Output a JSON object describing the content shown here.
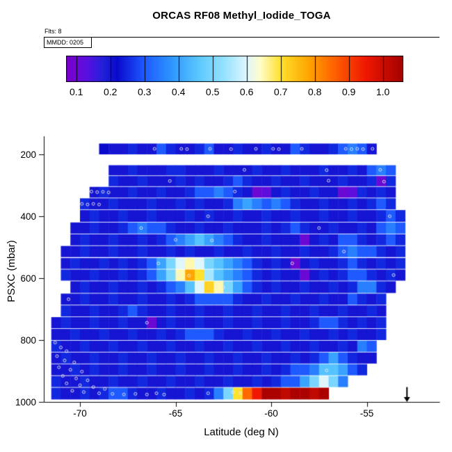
{
  "header": {
    "title": "ORCAS RF08 Methyl_Iodide_TOGA",
    "flights_label": "Flts: 8",
    "legend_flight_label": "MMDD: 0205"
  },
  "chart_data": {
    "type": "heatmap",
    "title": "ORCAS RF08 Methyl_Iodide_TOGA",
    "xlabel": "Latitude (deg N)",
    "ylabel": "PSXC (mbar)",
    "xlim": [
      -71.9,
      -51.2
    ],
    "ylim": [
      1000,
      140
    ],
    "x_ticks": [
      -70,
      -65,
      -60,
      -55
    ],
    "y_ticks": [
      200,
      400,
      600,
      800,
      1000
    ],
    "grid": false,
    "legend_position": "top",
    "colorbar": {
      "ticks": [
        0.1,
        0.2,
        0.3,
        0.4,
        0.5,
        0.6,
        0.7,
        0.8,
        0.9,
        1.0
      ],
      "domain": [
        0.07,
        1.06
      ],
      "anchors": [
        [
          0.07,
          "#7A00C8"
        ],
        [
          0.13,
          "#5A10E0"
        ],
        [
          0.18,
          "#2020D8"
        ],
        [
          0.22,
          "#0A0ACD"
        ],
        [
          0.3,
          "#1E5AFF"
        ],
        [
          0.38,
          "#2E96FF"
        ],
        [
          0.46,
          "#5CC8FF"
        ],
        [
          0.54,
          "#9AE4FF"
        ],
        [
          0.6,
          "#DFF6FF"
        ],
        [
          0.64,
          "#FFFDCB"
        ],
        [
          0.7,
          "#FFE12E"
        ],
        [
          0.78,
          "#FFA700"
        ],
        [
          0.86,
          "#FF6000"
        ],
        [
          0.95,
          "#F01800"
        ],
        [
          1.06,
          "#A40000"
        ]
      ]
    },
    "cell_width_deg": 0.5,
    "rows": [
      {
        "p_top": 165,
        "p_bot": 200,
        "lat_start": -69.0,
        "values": [
          0.22,
          0.2,
          0.2,
          0.25,
          0.2,
          0.2,
          0.3,
          0.25,
          0.2,
          0.2,
          0.25,
          0.3,
          0.2,
          0.2,
          0.25,
          0.2,
          0.2,
          0.25,
          0.2,
          0.2,
          0.3,
          0.25,
          0.2,
          0.2,
          0.25,
          0.3,
          0.35,
          0.3,
          0.2
        ]
      },
      {
        "p_top": 235,
        "p_bot": 268,
        "lat_start": -68.5,
        "values": [
          0.2,
          0.2,
          0.25,
          0.2,
          0.2,
          0.2,
          0.25,
          0.25,
          0.2,
          0.2,
          0.2,
          0.25,
          0.2,
          0.2,
          0.2,
          0.25,
          0.2,
          0.2,
          0.25,
          0.2,
          0.2,
          0.2,
          0.25,
          0.2,
          0.2,
          0.25,
          0.2,
          0.3,
          0.35,
          0.3
        ]
      },
      {
        "p_top": 270,
        "p_bot": 303,
        "lat_start": -68.5,
        "values": [
          0.25,
          0.2,
          0.2,
          0.25,
          0.2,
          0.2,
          0.2,
          0.25,
          0.2,
          0.25,
          0.2,
          0.2,
          0.25,
          0.3,
          0.25,
          0.2,
          0.2,
          0.25,
          0.2,
          0.2,
          0.25,
          0.2,
          0.2,
          0.2,
          0.25,
          0.2,
          0.2,
          0.25,
          0.1,
          0.25
        ]
      },
      {
        "p_top": 305,
        "p_bot": 340,
        "lat_start": -69.5,
        "values": [
          0.2,
          0.25,
          0.2,
          0.2,
          0.25,
          0.2,
          0.2,
          0.25,
          0.2,
          0.2,
          0.25,
          0.3,
          0.3,
          0.35,
          0.3,
          0.25,
          0.2,
          0.1,
          0.12,
          0.2,
          0.25,
          0.2,
          0.2,
          0.25,
          0.2,
          0.2,
          0.1,
          0.12,
          0.25,
          0.2,
          0.25,
          0.2
        ]
      },
      {
        "p_top": 342,
        "p_bot": 378,
        "lat_start": -70.0,
        "values": [
          0.25,
          0.2,
          0.2,
          0.25,
          0.2,
          0.2,
          0.2,
          0.25,
          0.2,
          0.2,
          0.25,
          0.2,
          0.25,
          0.2,
          0.2,
          0.25,
          0.35,
          0.4,
          0.35,
          0.3,
          0.35,
          0.3,
          0.25,
          0.2,
          0.2,
          0.25,
          0.2,
          0.2,
          0.25,
          0.2,
          0.25,
          0.3,
          0.25
        ]
      },
      {
        "p_top": 380,
        "p_bot": 418,
        "lat_start": -70.0,
        "values": [
          0.2,
          0.25,
          0.2,
          0.2,
          0.25,
          0.2,
          0.2,
          0.25,
          0.2,
          0.2,
          0.2,
          0.25,
          0.2,
          0.25,
          0.2,
          0.2,
          0.25,
          0.2,
          0.2,
          0.25,
          0.2,
          0.2,
          0.25,
          0.2,
          0.2,
          0.25,
          0.2,
          0.2,
          0.25,
          0.2,
          0.2,
          0.25,
          0.3,
          0.25
        ]
      },
      {
        "p_top": 420,
        "p_bot": 456,
        "lat_start": -70.5,
        "values": [
          0.2,
          0.2,
          0.25,
          0.2,
          0.2,
          0.25,
          0.3,
          0.35,
          0.3,
          0.3,
          0.25,
          0.2,
          0.2,
          0.25,
          0.2,
          0.2,
          0.25,
          0.2,
          0.2,
          0.2,
          0.25,
          0.2,
          0.25,
          0.3,
          0.25,
          0.2,
          0.2,
          0.25,
          0.2,
          0.2,
          0.25,
          0.2,
          0.3,
          0.35,
          0.3
        ]
      },
      {
        "p_top": 458,
        "p_bot": 494,
        "lat_start": -70.5,
        "values": [
          0.2,
          0.25,
          0.2,
          0.2,
          0.25,
          0.2,
          0.2,
          0.25,
          0.2,
          0.25,
          0.3,
          0.35,
          0.4,
          0.45,
          0.4,
          0.35,
          0.3,
          0.25,
          0.2,
          0.2,
          0.25,
          0.2,
          0.2,
          0.2,
          0.1,
          0.2,
          0.25,
          0.2,
          0.3,
          0.3,
          0.25,
          0.2,
          0.25,
          0.3,
          0.25
        ]
      },
      {
        "p_top": 496,
        "p_bot": 532,
        "lat_start": -71.0,
        "values": [
          0.2,
          0.2,
          0.25,
          0.2,
          0.2,
          0.25,
          0.2,
          0.2,
          0.25,
          0.2,
          0.2,
          0.25,
          0.2,
          0.25,
          0.2,
          0.2,
          0.25,
          0.2,
          0.2,
          0.25,
          0.2,
          0.2,
          0.25,
          0.2,
          0.2,
          0.25,
          0.2,
          0.2,
          0.25,
          0.3,
          0.35,
          0.3,
          0.3,
          0.25,
          0.2,
          0.25
        ]
      },
      {
        "p_top": 535,
        "p_bot": 570,
        "lat_start": -71.0,
        "values": [
          0.2,
          0.25,
          0.2,
          0.2,
          0.25,
          0.2,
          0.25,
          0.2,
          0.25,
          0.3,
          0.4,
          0.5,
          0.6,
          0.65,
          0.6,
          0.5,
          0.45,
          0.4,
          0.35,
          0.3,
          0.25,
          0.2,
          0.25,
          0.2,
          0.1,
          0.2,
          0.25,
          0.2,
          0.2,
          0.25,
          0.3,
          0.25,
          0.2,
          0.25,
          0.2,
          0.25
        ]
      },
      {
        "p_top": 572,
        "p_bot": 608,
        "lat_start": -71.0,
        "values": [
          0.25,
          0.2,
          0.2,
          0.25,
          0.2,
          0.2,
          0.25,
          0.2,
          0.25,
          0.3,
          0.4,
          0.5,
          0.65,
          0.78,
          0.7,
          0.55,
          0.45,
          0.4,
          0.35,
          0.3,
          0.25,
          0.2,
          0.25,
          0.2,
          0.2,
          0.1,
          0.2,
          0.25,
          0.2,
          0.25,
          0.3,
          0.3,
          0.25,
          0.2,
          0.25,
          0.2
        ]
      },
      {
        "p_top": 610,
        "p_bot": 648,
        "lat_start": -70.5,
        "values": [
          0.2,
          0.25,
          0.2,
          0.2,
          0.25,
          0.2,
          0.2,
          0.25,
          0.2,
          0.25,
          0.3,
          0.35,
          0.45,
          0.6,
          0.72,
          0.65,
          0.5,
          0.4,
          0.3,
          0.25,
          0.2,
          0.25,
          0.2,
          0.2,
          0.25,
          0.2,
          0.2,
          0.25,
          0.2,
          0.25,
          0.35,
          0.35,
          0.25,
          0.2
        ]
      },
      {
        "p_top": 650,
        "p_bot": 686,
        "lat_start": -71.0,
        "values": [
          0.2,
          0.2,
          0.25,
          0.2,
          0.2,
          0.25,
          0.2,
          0.2,
          0.25,
          0.2,
          0.2,
          0.25,
          0.2,
          0.25,
          0.3,
          0.3,
          0.3,
          0.3,
          0.25,
          0.2,
          0.2,
          0.25,
          0.2,
          0.2,
          0.25,
          0.2,
          0.2,
          0.25,
          0.2,
          0.2,
          0.3,
          0.25,
          0.2,
          0.25
        ]
      },
      {
        "p_top": 688,
        "p_bot": 724,
        "lat_start": -71.0,
        "values": [
          0.25,
          0.2,
          0.2,
          0.25,
          0.2,
          0.2,
          0.25,
          0.3,
          0.25,
          0.2,
          0.2,
          0.25,
          0.2,
          0.2,
          0.25,
          0.2,
          0.2,
          0.25,
          0.2,
          0.2,
          0.25,
          0.2,
          0.2,
          0.25,
          0.2,
          0.2,
          0.25,
          0.2,
          0.2,
          0.25,
          0.2,
          0.2,
          0.25,
          0.2
        ]
      },
      {
        "p_top": 726,
        "p_bot": 762,
        "lat_start": -71.5,
        "values": [
          0.2,
          0.25,
          0.2,
          0.2,
          0.25,
          0.2,
          0.2,
          0.25,
          0.2,
          0.2,
          0.1,
          0.2,
          0.25,
          0.2,
          0.2,
          0.25,
          0.2,
          0.2,
          0.25,
          0.2,
          0.2,
          0.25,
          0.2,
          0.2,
          0.25,
          0.2,
          0.2,
          0.25,
          0.3,
          0.3,
          0.25,
          0.2,
          0.25,
          0.2,
          0.25
        ]
      },
      {
        "p_top": 764,
        "p_bot": 800,
        "lat_start": -71.5,
        "values": [
          0.2,
          0.2,
          0.25,
          0.2,
          0.2,
          0.25,
          0.2,
          0.2,
          0.25,
          0.2,
          0.2,
          0.25,
          0.2,
          0.25,
          0.3,
          0.3,
          0.3,
          0.25,
          0.2,
          0.2,
          0.25,
          0.2,
          0.2,
          0.25,
          0.2,
          0.2,
          0.25,
          0.2,
          0.2,
          0.25,
          0.2,
          0.25,
          0.2,
          0.2,
          0.25
        ]
      },
      {
        "p_top": 802,
        "p_bot": 838,
        "lat_start": -71.5,
        "values": [
          0.25,
          0.2,
          0.2,
          0.25,
          0.2,
          0.2,
          0.25,
          0.2,
          0.2,
          0.25,
          0.2,
          0.2,
          0.25,
          0.2,
          0.2,
          0.25,
          0.2,
          0.2,
          0.25,
          0.2,
          0.2,
          0.25,
          0.2,
          0.2,
          0.25,
          0.2,
          0.2,
          0.25,
          0.2,
          0.2,
          0.25,
          0.2,
          0.35,
          0.3
        ]
      },
      {
        "p_top": 840,
        "p_bot": 876,
        "lat_start": -71.5,
        "values": [
          0.2,
          0.25,
          0.2,
          0.2,
          0.25,
          0.2,
          0.2,
          0.25,
          0.2,
          0.2,
          0.25,
          0.2,
          0.2,
          0.25,
          0.2,
          0.2,
          0.25,
          0.2,
          0.2,
          0.25,
          0.2,
          0.2,
          0.25,
          0.2,
          0.2,
          0.25,
          0.2,
          0.25,
          0.3,
          0.4,
          0.3,
          0.25,
          0.2,
          0.2
        ]
      },
      {
        "p_top": 878,
        "p_bot": 914,
        "lat_start": -71.5,
        "values": [
          0.2,
          0.2,
          0.25,
          0.2,
          0.25,
          0.2,
          0.2,
          0.25,
          0.2,
          0.2,
          0.25,
          0.2,
          0.2,
          0.25,
          0.2,
          0.2,
          0.25,
          0.2,
          0.2,
          0.25,
          0.2,
          0.2,
          0.25,
          0.2,
          0.25,
          0.3,
          0.3,
          0.35,
          0.45,
          0.45,
          0.4,
          0.3,
          0.25
        ]
      },
      {
        "p_top": 916,
        "p_bot": 952,
        "lat_start": -71.5,
        "values": [
          0.25,
          0.2,
          0.2,
          0.25,
          0.2,
          0.2,
          0.25,
          0.2,
          0.2,
          0.25,
          0.2,
          0.2,
          0.25,
          0.2,
          0.2,
          0.25,
          0.2,
          0.2,
          0.25,
          0.2,
          0.2,
          0.25,
          0.2,
          0.25,
          0.3,
          0.3,
          0.4,
          0.5,
          0.6,
          0.5,
          0.35
        ]
      },
      {
        "p_top": 954,
        "p_bot": 992,
        "lat_start": -71.5,
        "values": [
          0.25,
          0.2,
          0.2,
          0.25,
          0.2,
          0.25,
          0.3,
          0.3,
          0.25,
          0.2,
          0.2,
          0.25,
          0.2,
          0.2,
          0.25,
          0.2,
          0.25,
          0.35,
          0.5,
          0.7,
          0.85,
          0.95,
          1.05,
          1.05,
          1.02,
          1.05,
          1.05,
          1.02,
          1.05
        ]
      }
    ],
    "sample_markers": [
      [
        -66.1,
        182
      ],
      [
        -64.7,
        182
      ],
      [
        -64.4,
        183
      ],
      [
        -63.2,
        182
      ],
      [
        -62.1,
        183
      ],
      [
        -60.8,
        182
      ],
      [
        -59.9,
        182
      ],
      [
        -59.6,
        183
      ],
      [
        -58.4,
        182
      ],
      [
        -56.1,
        182
      ],
      [
        -55.8,
        183
      ],
      [
        -55.5,
        182
      ],
      [
        -55.2,
        183
      ],
      [
        -54.7,
        182
      ],
      [
        -61.4,
        250
      ],
      [
        -57.1,
        251
      ],
      [
        -54.3,
        250
      ],
      [
        -65.3,
        286
      ],
      [
        -57.0,
        285
      ],
      [
        -54.1,
        288
      ],
      [
        -69.4,
        320
      ],
      [
        -69.1,
        322
      ],
      [
        -68.8,
        321
      ],
      [
        -68.5,
        323
      ],
      [
        -61.9,
        320
      ],
      [
        -69.9,
        360
      ],
      [
        -69.6,
        362
      ],
      [
        -69.3,
        360
      ],
      [
        -69.0,
        362
      ],
      [
        -63.3,
        400
      ],
      [
        -53.8,
        400
      ],
      [
        -66.8,
        438
      ],
      [
        -57.5,
        438
      ],
      [
        -65.0,
        476
      ],
      [
        -63.1,
        478
      ],
      [
        -56.2,
        514
      ],
      [
        -65.9,
        552
      ],
      [
        -58.9,
        552
      ],
      [
        -64.9,
        590
      ],
      [
        -64.3,
        592
      ],
      [
        -53.6,
        590
      ],
      [
        -62.9,
        628
      ],
      [
        -62.5,
        630
      ],
      [
        -70.6,
        668
      ],
      [
        -66.5,
        744
      ],
      [
        -71.3,
        808
      ],
      [
        -71.0,
        824
      ],
      [
        -70.7,
        836
      ],
      [
        -71.2,
        852
      ],
      [
        -70.8,
        866
      ],
      [
        -70.3,
        872
      ],
      [
        -71.1,
        888
      ],
      [
        -70.5,
        896
      ],
      [
        -69.9,
        902
      ],
      [
        -70.9,
        916
      ],
      [
        -70.2,
        924
      ],
      [
        -69.6,
        930
      ],
      [
        -70.7,
        940
      ],
      [
        -70.0,
        946
      ],
      [
        -69.3,
        952
      ],
      [
        -68.7,
        958
      ],
      [
        -70.4,
        964
      ],
      [
        -69.8,
        968
      ],
      [
        -69.0,
        972
      ],
      [
        -68.3,
        974
      ],
      [
        -67.7,
        976
      ],
      [
        -67.1,
        974
      ],
      [
        -66.5,
        976
      ],
      [
        -66.0,
        972
      ],
      [
        -65.6,
        976
      ],
      [
        -63.3,
        972
      ],
      [
        -62.0,
        968
      ],
      [
        -61.6,
        972
      ],
      [
        -57.1,
        898
      ],
      [
        -57.4,
        934
      ]
    ],
    "annotations": [
      {
        "type": "down-arrow",
        "glyph": "↓",
        "lat": -52.9,
        "p_top": 952,
        "p_bot": 1000
      }
    ]
  }
}
